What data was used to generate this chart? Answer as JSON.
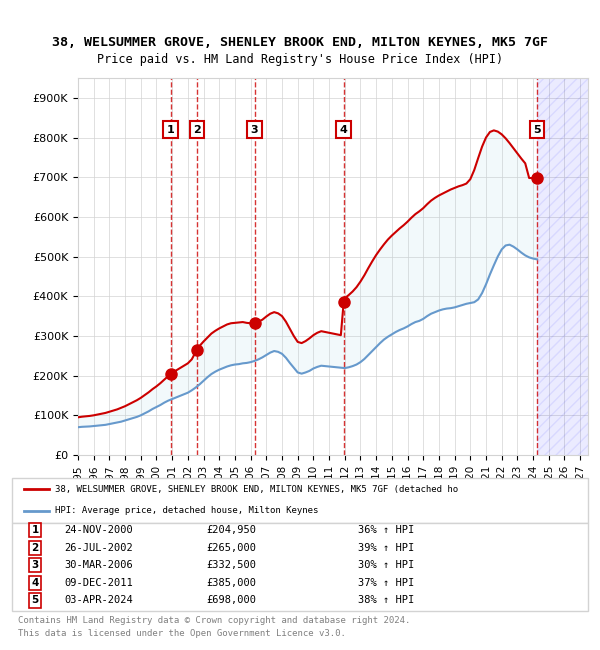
{
  "title": "38, WELSUMMER GROVE, SHENLEY BROOK END, MILTON KEYNES, MK5 7GF",
  "subtitle": "Price paid vs. HM Land Registry's House Price Index (HPI)",
  "legend_line1": "38, WELSUMMER GROVE, SHENLEY BROOK END, MILTON KEYNES, MK5 7GF (detached ho",
  "legend_line2": "HPI: Average price, detached house, Milton Keynes",
  "footer1": "Contains HM Land Registry data © Crown copyright and database right 2024.",
  "footer2": "This data is licensed under the Open Government Licence v3.0.",
  "xlim": [
    1995.0,
    2027.5
  ],
  "ylim": [
    0,
    950000
  ],
  "yticks": [
    0,
    100000,
    200000,
    300000,
    400000,
    500000,
    600000,
    700000,
    800000,
    900000
  ],
  "ytick_labels": [
    "£0",
    "£100K",
    "£200K",
    "£300K",
    "£400K",
    "£500K",
    "£600K",
    "£700K",
    "£800K",
    "£900K"
  ],
  "xticks": [
    1995,
    1996,
    1997,
    1998,
    1999,
    2000,
    2001,
    2002,
    2003,
    2004,
    2005,
    2006,
    2007,
    2008,
    2009,
    2010,
    2011,
    2012,
    2013,
    2014,
    2015,
    2016,
    2017,
    2018,
    2019,
    2020,
    2021,
    2022,
    2023,
    2024,
    2025,
    2026,
    2027
  ],
  "red_line_color": "#cc0000",
  "blue_line_color": "#6699cc",
  "fill_alpha": 0.15,
  "hatch_color": "#aaaacc",
  "sale_points": [
    {
      "num": 1,
      "date": "24-NOV-2000",
      "price": 204950,
      "pct": "36%",
      "x": 2000.9
    },
    {
      "num": 2,
      "date": "26-JUL-2002",
      "price": 265000,
      "pct": "39%",
      "x": 2002.57
    },
    {
      "num": 3,
      "date": "30-MAR-2006",
      "price": 332500,
      "pct": "30%",
      "x": 2006.25
    },
    {
      "num": 4,
      "date": "09-DEC-2011",
      "price": 385000,
      "pct": "37%",
      "x": 2011.93
    },
    {
      "num": 5,
      "date": "03-APR-2024",
      "price": 698000,
      "pct": "38%",
      "x": 2024.25
    }
  ],
  "hpi_data_x": [
    1995.0,
    1995.25,
    1995.5,
    1995.75,
    1996.0,
    1996.25,
    1996.5,
    1996.75,
    1997.0,
    1997.25,
    1997.5,
    1997.75,
    1998.0,
    1998.25,
    1998.5,
    1998.75,
    1999.0,
    1999.25,
    1999.5,
    1999.75,
    2000.0,
    2000.25,
    2000.5,
    2000.75,
    2001.0,
    2001.25,
    2001.5,
    2001.75,
    2002.0,
    2002.25,
    2002.5,
    2002.75,
    2003.0,
    2003.25,
    2003.5,
    2003.75,
    2004.0,
    2004.25,
    2004.5,
    2004.75,
    2005.0,
    2005.25,
    2005.5,
    2005.75,
    2006.0,
    2006.25,
    2006.5,
    2006.75,
    2007.0,
    2007.25,
    2007.5,
    2007.75,
    2008.0,
    2008.25,
    2008.5,
    2008.75,
    2009.0,
    2009.25,
    2009.5,
    2009.75,
    2010.0,
    2010.25,
    2010.5,
    2010.75,
    2011.0,
    2011.25,
    2011.5,
    2011.75,
    2012.0,
    2012.25,
    2012.5,
    2012.75,
    2013.0,
    2013.25,
    2013.5,
    2013.75,
    2014.0,
    2014.25,
    2014.5,
    2014.75,
    2015.0,
    2015.25,
    2015.5,
    2015.75,
    2016.0,
    2016.25,
    2016.5,
    2016.75,
    2017.0,
    2017.25,
    2017.5,
    2017.75,
    2018.0,
    2018.25,
    2018.5,
    2018.75,
    2019.0,
    2019.25,
    2019.5,
    2019.75,
    2020.0,
    2020.25,
    2020.5,
    2020.75,
    2021.0,
    2021.25,
    2021.5,
    2021.75,
    2022.0,
    2022.25,
    2022.5,
    2022.75,
    2023.0,
    2023.25,
    2023.5,
    2023.75,
    2024.0,
    2024.25
  ],
  "hpi_data_y": [
    70000,
    71000,
    71500,
    72000,
    73000,
    74000,
    75000,
    76000,
    78000,
    80000,
    82000,
    84000,
    87000,
    90000,
    93000,
    96000,
    100000,
    105000,
    110000,
    116000,
    121000,
    126000,
    132000,
    137000,
    141000,
    145000,
    149000,
    153000,
    157000,
    163000,
    170000,
    178000,
    187000,
    196000,
    204000,
    210000,
    215000,
    219000,
    223000,
    226000,
    228000,
    229000,
    231000,
    232000,
    234000,
    237000,
    241000,
    246000,
    252000,
    258000,
    262000,
    260000,
    255000,
    245000,
    232000,
    220000,
    208000,
    205000,
    208000,
    212000,
    218000,
    222000,
    225000,
    224000,
    223000,
    222000,
    221000,
    220000,
    219000,
    221000,
    224000,
    228000,
    234000,
    242000,
    252000,
    262000,
    272000,
    282000,
    291000,
    298000,
    304000,
    310000,
    315000,
    319000,
    324000,
    330000,
    335000,
    338000,
    343000,
    350000,
    356000,
    360000,
    364000,
    367000,
    369000,
    370000,
    372000,
    375000,
    378000,
    381000,
    383000,
    385000,
    392000,
    408000,
    430000,
    455000,
    478000,
    500000,
    518000,
    528000,
    530000,
    525000,
    518000,
    510000,
    503000,
    498000,
    495000,
    493000
  ],
  "red_data_x": [
    1995.0,
    1995.25,
    1995.5,
    1995.75,
    1996.0,
    1996.25,
    1996.5,
    1996.75,
    1997.0,
    1997.25,
    1997.5,
    1997.75,
    1998.0,
    1998.25,
    1998.5,
    1998.75,
    1999.0,
    1999.25,
    1999.5,
    1999.75,
    2000.0,
    2000.25,
    2000.5,
    2000.75,
    2000.9,
    2001.0,
    2001.25,
    2001.5,
    2001.75,
    2002.0,
    2002.25,
    2002.57,
    2002.75,
    2003.0,
    2003.25,
    2003.5,
    2003.75,
    2004.0,
    2004.25,
    2004.5,
    2004.75,
    2005.0,
    2005.25,
    2005.5,
    2005.75,
    2006.0,
    2006.25,
    2006.5,
    2006.75,
    2007.0,
    2007.25,
    2007.5,
    2007.75,
    2008.0,
    2008.25,
    2008.5,
    2008.75,
    2009.0,
    2009.25,
    2009.5,
    2009.75,
    2010.0,
    2010.25,
    2010.5,
    2010.75,
    2011.0,
    2011.25,
    2011.5,
    2011.75,
    2011.93,
    2012.0,
    2012.25,
    2012.5,
    2012.75,
    2013.0,
    2013.25,
    2013.5,
    2013.75,
    2014.0,
    2014.25,
    2014.5,
    2014.75,
    2015.0,
    2015.25,
    2015.5,
    2015.75,
    2016.0,
    2016.25,
    2016.5,
    2016.75,
    2017.0,
    2017.25,
    2017.5,
    2017.75,
    2018.0,
    2018.25,
    2018.5,
    2018.75,
    2019.0,
    2019.25,
    2019.5,
    2019.75,
    2020.0,
    2020.25,
    2020.5,
    2020.75,
    2021.0,
    2021.25,
    2021.5,
    2021.75,
    2022.0,
    2022.25,
    2022.5,
    2022.75,
    2023.0,
    2023.25,
    2023.5,
    2023.75,
    2024.0,
    2024.25
  ],
  "red_data_y": [
    95000,
    96500,
    97500,
    98500,
    100000,
    102000,
    104000,
    106000,
    109000,
    112000,
    115000,
    119000,
    123000,
    128000,
    133000,
    138000,
    144000,
    151000,
    158000,
    166000,
    173000,
    181000,
    190000,
    199000,
    204950,
    208000,
    213000,
    219000,
    225000,
    231000,
    241000,
    265000,
    275000,
    286000,
    296000,
    306000,
    313000,
    319000,
    324000,
    329000,
    332000,
    333000,
    334000,
    335000,
    333000,
    332000,
    332500,
    336000,
    341000,
    349000,
    356000,
    360000,
    357000,
    350000,
    336000,
    318000,
    300000,
    285000,
    282000,
    287000,
    294000,
    302000,
    308000,
    312000,
    310000,
    308000,
    306000,
    304000,
    302000,
    385000,
    395000,
    403000,
    412000,
    423000,
    437000,
    453000,
    471000,
    488000,
    504000,
    518000,
    531000,
    543000,
    553000,
    562000,
    571000,
    579000,
    588000,
    598000,
    607000,
    614000,
    622000,
    632000,
    641000,
    648000,
    654000,
    659000,
    664000,
    669000,
    673000,
    677000,
    680000,
    684000,
    695000,
    718000,
    748000,
    777000,
    800000,
    814000,
    818000,
    815000,
    808000,
    798000,
    786000,
    773000,
    760000,
    747000,
    735000,
    698000,
    698000,
    698000
  ]
}
